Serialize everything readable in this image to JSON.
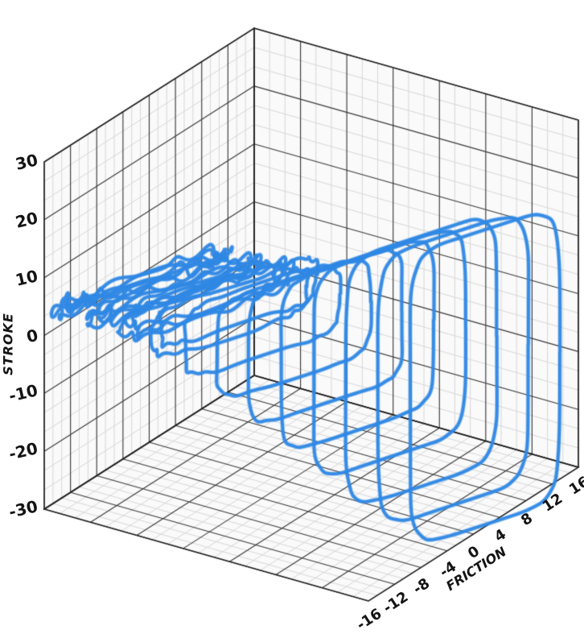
{
  "page": {
    "background": "#ffffff"
  },
  "chart_data": {
    "type": "line",
    "subtype": "3d-waterfall-hysteresis-loops",
    "title": "",
    "legend": null,
    "series_color": "#2f88e4",
    "axes": {
      "stroke": {
        "label": "STROKE",
        "min": -30,
        "max": 30,
        "major_step": 10,
        "ticks": [
          {
            "value": 30,
            "label": "30"
          },
          {
            "value": 20,
            "label": "20"
          },
          {
            "value": 10,
            "label": "10"
          },
          {
            "value": 0,
            "label": "0"
          },
          {
            "value": -10,
            "label": "-10"
          },
          {
            "value": -20,
            "label": "-20"
          },
          {
            "value": -30,
            "label": "-30"
          }
        ]
      },
      "friction": {
        "label": "FRICTION",
        "min": -16,
        "max": 16,
        "major_step": 4,
        "ticks": [
          {
            "value": -16,
            "label": "-16"
          },
          {
            "value": -12,
            "label": "-12"
          },
          {
            "value": -8,
            "label": "-8"
          },
          {
            "value": -4,
            "label": "-4"
          },
          {
            "value": 0,
            "label": "0"
          },
          {
            "value": 4,
            "label": "4"
          },
          {
            "value": 8,
            "label": "8"
          },
          {
            "value": 12,
            "label": "12"
          },
          {
            "value": 16,
            "label": "16"
          }
        ]
      },
      "depth": {
        "label": "",
        "min": 0,
        "max": 7,
        "major_step": 1,
        "ticks": []
      }
    },
    "grid": {
      "major_color": "#3a3a3a",
      "minor_color": "#d7d7d7",
      "edge_color": "#1f1f1f",
      "wall_color": "#fafafa",
      "minor_divisions_per_major": 3
    },
    "loops": [
      {
        "depth": 0.25,
        "stroke_center": 0.3,
        "stroke_amplitude": 0.5,
        "friction_center": -4.0,
        "friction_amplitude": 12.0,
        "tilt": -0.35,
        "wiggle": 1.2
      },
      {
        "depth": 0.92,
        "stroke_center": 0.3,
        "stroke_amplitude": 1.3,
        "friction_center": -3.86,
        "friction_amplitude": 11.95,
        "tilt": -0.35,
        "wiggle": 1.0
      },
      {
        "depth": 1.59,
        "stroke_center": 0.3,
        "stroke_amplitude": 2.5,
        "friction_center": -3.73,
        "friction_amplitude": 11.9,
        "tilt": -0.35,
        "wiggle": 0.8
      },
      {
        "depth": 2.26,
        "stroke_center": 0.3,
        "stroke_amplitude": 4.2,
        "friction_center": -3.59,
        "friction_amplitude": 11.84,
        "tilt": -0.35,
        "wiggle": 0.5
      },
      {
        "depth": 2.93,
        "stroke_center": 0.3,
        "stroke_amplitude": 6.3,
        "friction_center": -3.46,
        "friction_amplitude": 11.78,
        "tilt": -0.35,
        "wiggle": 0.3
      },
      {
        "depth": 3.59,
        "stroke_center": 0.3,
        "stroke_amplitude": 8.8,
        "friction_center": -3.32,
        "friction_amplitude": 11.73,
        "tilt": -0.35,
        "wiggle": 0.2
      },
      {
        "depth": 4.26,
        "stroke_center": 0.3,
        "stroke_amplitude": 11.7,
        "friction_center": -3.18,
        "friction_amplitude": 11.68,
        "tilt": -0.35,
        "wiggle": 0.15
      },
      {
        "depth": 4.93,
        "stroke_center": 0.3,
        "stroke_amplitude": 14.8,
        "friction_center": -3.05,
        "friction_amplitude": 11.62,
        "tilt": -0.35,
        "wiggle": 0.12
      },
      {
        "depth": 5.6,
        "stroke_center": 0.3,
        "stroke_amplitude": 18.1,
        "friction_center": -2.91,
        "friction_amplitude": 11.57,
        "tilt": -0.35,
        "wiggle": 0.1
      },
      {
        "depth": 6.27,
        "stroke_center": 0.3,
        "stroke_amplitude": 21.6,
        "friction_center": -2.77,
        "friction_amplitude": 11.51,
        "tilt": -0.35,
        "wiggle": 0.1
      },
      {
        "depth": 6.94,
        "stroke_center": 0.3,
        "stroke_amplitude": 23.5,
        "friction_center": -2.64,
        "friction_amplitude": 11.46,
        "tilt": -0.35,
        "wiggle": 0.1
      },
      {
        "depth": 7.6,
        "stroke_center": 0.3,
        "stroke_amplitude": 25.5,
        "friction_center": -2.5,
        "friction_amplitude": 11.4,
        "tilt": -0.35,
        "wiggle": 0.1
      }
    ]
  }
}
